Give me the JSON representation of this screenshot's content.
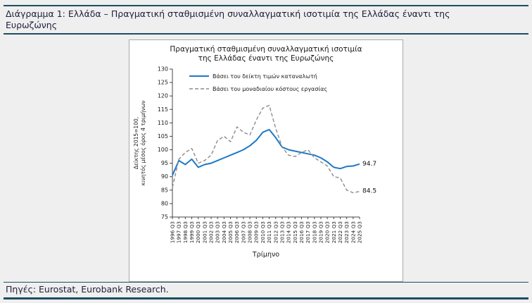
{
  "colors": {
    "page-bg": "#efefef",
    "rule-color": "#1d4e60",
    "heading-color": "#1e1e3c",
    "chart-border": "#a9a9a9"
  },
  "header": {
    "title_lines": [
      "Διάγραμμα 1: Ελλάδα – Πραγματική σταθμισμένη συναλλαγματική ισοτιμία της Ελλάδας έναντι της",
      "Ευρωζώνης"
    ]
  },
  "footer": {
    "sources": "Πηγές: Eurostat, Eurobank Research."
  },
  "chart_data": {
    "type": "line",
    "title_lines": [
      "Πραγματική σταθμισμένη συναλλαγματική ισοτιμία",
      "της Ελλάδας έναντι της Ευρωζώνης"
    ],
    "ylabel_lines": [
      "Δείκτης 2015=100,",
      "κινητός μέσος όρος 4 τριμήνων"
    ],
    "xlabel": "Τρίμηνο",
    "ylim": [
      75,
      130
    ],
    "ytick_step": 5,
    "xtick_suffix": " Q3",
    "x_years": [
      1996,
      1997,
      1998,
      1999,
      2000,
      2001,
      2002,
      2003,
      2004,
      2005,
      2006,
      2007,
      2008,
      2009,
      2010,
      2011,
      2012,
      2013,
      2014,
      2015,
      2016,
      2017,
      2018,
      2019,
      2020,
      2021,
      2022,
      2023,
      2024,
      2025
    ],
    "legend_position": "top-left-inside",
    "grid": false,
    "series": [
      {
        "name": "Βάσει του δείκτη τιμών καταναλωτή",
        "color": "#1e78c8",
        "style": "solid",
        "end_label": "94.7",
        "values": [
          90.5,
          96.0,
          94.5,
          96.5,
          93.5,
          94.5,
          95.0,
          96.0,
          97.0,
          98.0,
          99.0,
          100.0,
          101.5,
          103.5,
          106.5,
          107.5,
          104.5,
          101.0,
          100.0,
          99.5,
          99.0,
          98.5,
          98.0,
          97.0,
          95.5,
          93.5,
          93.0,
          93.8,
          94.0,
          94.7
        ]
      },
      {
        "name": "Βάσει του μοναδιαίου κόστους εργασίας",
        "color": "#8c8c8c",
        "style": "dashed",
        "end_label": "84.5",
        "values": [
          86.0,
          96.5,
          99.0,
          100.5,
          95.0,
          96.0,
          98.0,
          103.5,
          105.0,
          103.0,
          108.5,
          106.5,
          105.5,
          111.0,
          115.5,
          116.5,
          108.0,
          101.0,
          98.0,
          97.5,
          99.0,
          100.0,
          97.0,
          95.5,
          94.0,
          90.0,
          89.5,
          85.0,
          84.0,
          84.5
        ]
      }
    ]
  }
}
